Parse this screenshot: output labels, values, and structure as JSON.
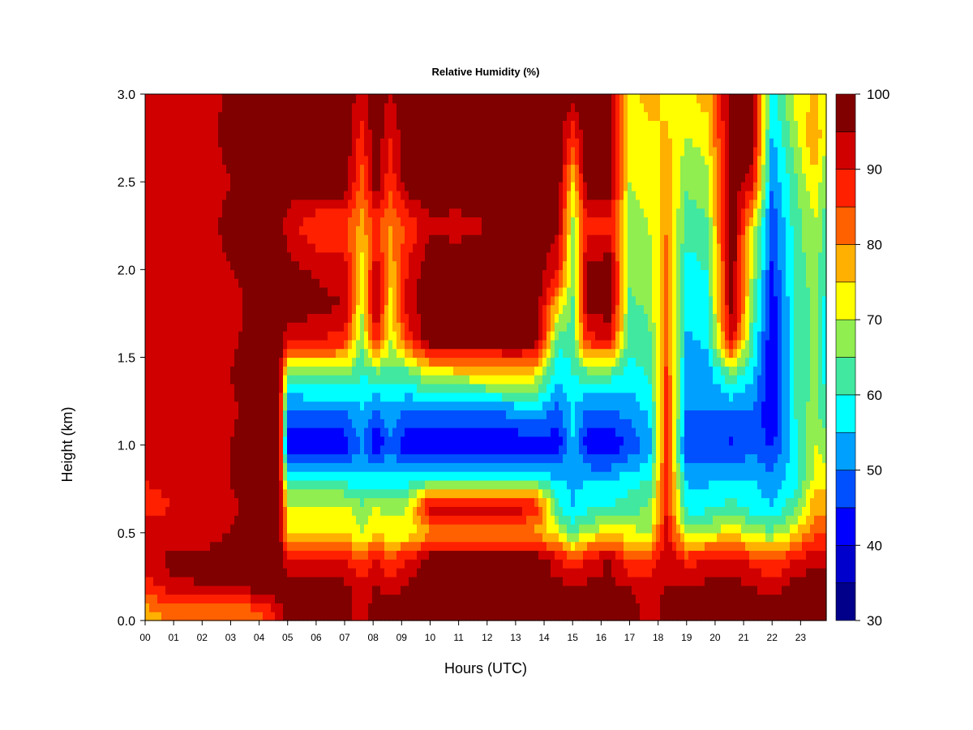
{
  "chart_data": {
    "type": "heatmap",
    "title": "Relative Humidity (%)",
    "xlabel": "Hours (UTC)",
    "ylabel": "Height (km)",
    "xlim": [
      0,
      23.9
    ],
    "ylim": [
      0,
      3.0
    ],
    "x_ticks": [
      0,
      1,
      2,
      3,
      4,
      5,
      6,
      7,
      8,
      9,
      10,
      11,
      12,
      13,
      14,
      15,
      16,
      17,
      18,
      19,
      20,
      21,
      22,
      23
    ],
    "x_tick_labels": [
      "00",
      "01",
      "02",
      "03",
      "04",
      "05",
      "06",
      "07",
      "08",
      "09",
      "10",
      "11",
      "12",
      "13",
      "14",
      "15",
      "16",
      "17",
      "18",
      "19",
      "20",
      "21",
      "22",
      "23"
    ],
    "y_ticks": [
      0.0,
      0.5,
      1.0,
      1.5,
      2.0,
      2.5,
      3.0
    ],
    "y_tick_labels": [
      "0.0",
      "0.5",
      "1.0",
      "1.5",
      "2.0",
      "2.5",
      "3.0"
    ],
    "colorbar": {
      "levels": [
        30,
        35,
        40,
        45,
        50,
        55,
        60,
        65,
        70,
        75,
        80,
        85,
        90,
        95,
        100
      ],
      "tick_values": [
        30,
        40,
        50,
        60,
        70,
        80,
        90,
        100
      ],
      "tick_labels": [
        "30",
        "40",
        "50",
        "60",
        "70",
        "80",
        "90",
        "100"
      ],
      "colors": [
        "#00008B",
        "#0000CD",
        "#0000FF",
        "#0050FF",
        "#00A0FF",
        "#00FFFF",
        "#40E8A0",
        "#90EE50",
        "#FFFF00",
        "#FFB000",
        "#FF6000",
        "#FF2000",
        "#D00000",
        "#800000"
      ]
    },
    "heights_km": [
      0.05,
      0.2,
      0.35,
      0.5,
      0.65,
      0.8,
      1.0,
      1.2,
      1.4,
      1.6,
      1.8,
      2.0,
      2.25,
      2.5,
      2.75,
      2.95
    ],
    "rh_by_hour": [
      {
        "hour": 0.0,
        "rh": [
          78,
          88,
          92,
          95,
          88,
          90,
          92,
          93,
          92,
          95,
          92,
          93,
          94,
          93,
          94,
          94
        ]
      },
      {
        "hour": 1.0,
        "rh": [
          82,
          94,
          97,
          92,
          90,
          92,
          93,
          92,
          94,
          93,
          90,
          93,
          93,
          94,
          93,
          93
        ]
      },
      {
        "hour": 2.0,
        "rh": [
          82,
          95,
          96,
          93,
          91,
          92,
          93,
          93,
          93,
          92,
          90,
          93,
          94,
          93,
          94,
          93
        ]
      },
      {
        "hour": 3.0,
        "rh": [
          80,
          96,
          98,
          95,
          94,
          95,
          95,
          94,
          95,
          94,
          92,
          95,
          96,
          95,
          96,
          96
        ]
      },
      {
        "hour": 4.0,
        "rh": [
          84,
          98,
          99,
          98,
          97,
          98,
          98,
          98,
          98,
          98,
          98,
          98,
          98,
          98,
          98,
          98
        ]
      },
      {
        "hour": 4.7,
        "rh": [
          92,
          99,
          99,
          99,
          99,
          99,
          99,
          99,
          99,
          99,
          99,
          99,
          99,
          99,
          99,
          99
        ]
      },
      {
        "hour": 5.0,
        "rh": [
          99,
          97,
          92,
          75,
          72,
          58,
          40,
          48,
          64,
          92,
          99,
          97,
          92,
          99,
          99,
          99
        ]
      },
      {
        "hour": 6.0,
        "rh": [
          99,
          96,
          90,
          74,
          72,
          58,
          40,
          50,
          65,
          90,
          97,
          94,
          86,
          99,
          99,
          99
        ]
      },
      {
        "hour": 7.0,
        "rh": [
          99,
          96,
          90,
          74,
          72,
          58,
          42,
          50,
          66,
          88,
          95,
          92,
          86,
          99,
          99,
          99
        ]
      },
      {
        "hour": 7.6,
        "rh": [
          90,
          92,
          85,
          70,
          65,
          58,
          50,
          55,
          60,
          66,
          70,
          72,
          78,
          82,
          88,
          92
        ]
      },
      {
        "hour": 8.1,
        "rh": [
          99,
          95,
          90,
          74,
          70,
          58,
          40,
          50,
          62,
          90,
          97,
          94,
          86,
          99,
          99,
          99
        ]
      },
      {
        "hour": 8.6,
        "rh": [
          98,
          92,
          86,
          72,
          68,
          58,
          48,
          54,
          62,
          70,
          74,
          76,
          80,
          86,
          90,
          94
        ]
      },
      {
        "hour": 9.2,
        "rh": [
          99,
          96,
          90,
          72,
          70,
          58,
          40,
          50,
          62,
          86,
          93,
          90,
          86,
          99,
          99,
          99
        ]
      },
      {
        "hour": 10.0,
        "rh": [
          99,
          96,
          99,
          78,
          94,
          62,
          40,
          50,
          70,
          99,
          99,
          99,
          94,
          99,
          99,
          99
        ]
      },
      {
        "hour": 11.0,
        "rh": [
          99,
          96,
          99,
          78,
          94,
          62,
          40,
          50,
          72,
          99,
          99,
          99,
          93,
          99,
          99,
          99
        ]
      },
      {
        "hour": 12.0,
        "rh": [
          99,
          96,
          99,
          78,
          94,
          62,
          40,
          50,
          74,
          99,
          99,
          99,
          95,
          99,
          99,
          99
        ]
      },
      {
        "hour": 13.0,
        "rh": [
          99,
          96,
          99,
          78,
          94,
          62,
          40,
          52,
          76,
          99,
          99,
          99,
          97,
          99,
          99,
          99
        ]
      },
      {
        "hour": 13.7,
        "rh": [
          99,
          96,
          99,
          78,
          90,
          62,
          42,
          55,
          72,
          99,
          99,
          99,
          99,
          99,
          99,
          99
        ]
      },
      {
        "hour": 14.5,
        "rh": [
          99,
          96,
          92,
          72,
          60,
          55,
          42,
          48,
          55,
          62,
          75,
          90,
          96,
          99,
          99,
          99
        ]
      },
      {
        "hour": 15.0,
        "rh": [
          99,
          95,
          85,
          62,
          55,
          54,
          55,
          56,
          60,
          62,
          64,
          66,
          68,
          74,
          86,
          95
        ]
      },
      {
        "hour": 15.5,
        "rh": [
          99,
          96,
          90,
          70,
          58,
          55,
          42,
          50,
          62,
          88,
          97,
          96,
          88,
          99,
          99,
          99
        ]
      },
      {
        "hour": 16.3,
        "rh": [
          99,
          96,
          96,
          74,
          60,
          55,
          40,
          50,
          62,
          90,
          99,
          99,
          88,
          99,
          99,
          99
        ]
      },
      {
        "hour": 17.0,
        "rh": [
          99,
          95,
          85,
          72,
          62,
          58,
          46,
          52,
          58,
          62,
          64,
          66,
          68,
          70,
          72,
          74
        ]
      },
      {
        "hour": 17.7,
        "rh": [
          90,
          92,
          85,
          70,
          66,
          60,
          52,
          56,
          60,
          64,
          66,
          68,
          70,
          72,
          74,
          76
        ]
      },
      {
        "hour": 18.3,
        "rh": [
          99,
          95,
          94,
          92,
          90,
          90,
          88,
          88,
          86,
          85,
          84,
          82,
          80,
          78,
          76,
          74
        ]
      },
      {
        "hour": 19.0,
        "rh": [
          99,
          96,
          88,
          68,
          58,
          54,
          44,
          50,
          52,
          54,
          56,
          58,
          62,
          66,
          70,
          74
        ]
      },
      {
        "hour": 19.7,
        "rh": [
          99,
          96,
          90,
          70,
          58,
          54,
          46,
          50,
          52,
          56,
          58,
          60,
          64,
          68,
          72,
          76
        ]
      },
      {
        "hour": 20.6,
        "rh": [
          99,
          97,
          92,
          74,
          62,
          56,
          44,
          50,
          64,
          92,
          99,
          99,
          99,
          99,
          99,
          99
        ]
      },
      {
        "hour": 21.3,
        "rh": [
          99,
          95,
          88,
          68,
          58,
          55,
          48,
          50,
          56,
          62,
          66,
          70,
          74,
          92,
          99,
          99
        ]
      },
      {
        "hour": 22.0,
        "rh": [
          99,
          92,
          84,
          66,
          55,
          52,
          44,
          40,
          40,
          40,
          42,
          44,
          46,
          50,
          54,
          56
        ]
      },
      {
        "hour": 22.8,
        "rh": [
          99,
          97,
          90,
          74,
          64,
          58,
          58,
          60,
          60,
          60,
          60,
          62,
          62,
          64,
          68,
          72
        ]
      },
      {
        "hour": 23.5,
        "rh": [
          99,
          98,
          94,
          84,
          78,
          72,
          70,
          68,
          66,
          66,
          66,
          68,
          70,
          74,
          80,
          76
        ]
      },
      {
        "hour": 23.9,
        "rh": [
          99,
          98,
          94,
          84,
          78,
          72,
          68,
          60,
          58,
          58,
          58,
          60,
          62,
          66,
          70,
          70
        ]
      }
    ]
  }
}
